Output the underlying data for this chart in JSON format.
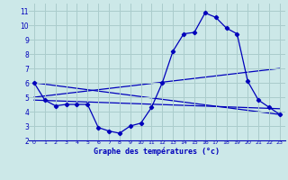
{
  "title": "Graphe des températures (°c)",
  "background_color": "#cce8e8",
  "grid_color": "#aacccc",
  "line_color": "#0000bb",
  "xlim": [
    -0.5,
    23.5
  ],
  "ylim": [
    2,
    11.5
  ],
  "yticks": [
    2,
    3,
    4,
    5,
    6,
    7,
    8,
    9,
    10,
    11
  ],
  "xticks": [
    0,
    1,
    2,
    3,
    4,
    5,
    6,
    7,
    8,
    9,
    10,
    11,
    12,
    13,
    14,
    15,
    16,
    17,
    18,
    19,
    20,
    21,
    22,
    23
  ],
  "line1_x": [
    0,
    1,
    2,
    3,
    4,
    5,
    6,
    7,
    8,
    9,
    10,
    11,
    12,
    13,
    14,
    15,
    16,
    17,
    18,
    19,
    20,
    21,
    22,
    23
  ],
  "line1_y": [
    6.0,
    4.8,
    4.4,
    4.5,
    4.5,
    4.5,
    2.9,
    2.65,
    2.5,
    3.0,
    3.2,
    4.3,
    6.0,
    8.2,
    9.4,
    9.5,
    10.85,
    10.55,
    9.8,
    9.4,
    6.1,
    4.8,
    4.3,
    3.8
  ],
  "line2_x": [
    0,
    23
  ],
  "line2_y": [
    6.0,
    3.8
  ],
  "line3_x": [
    0,
    23
  ],
  "line3_y": [
    5.0,
    7.0
  ],
  "line4_x": [
    0,
    23
  ],
  "line4_y": [
    4.8,
    4.2
  ]
}
